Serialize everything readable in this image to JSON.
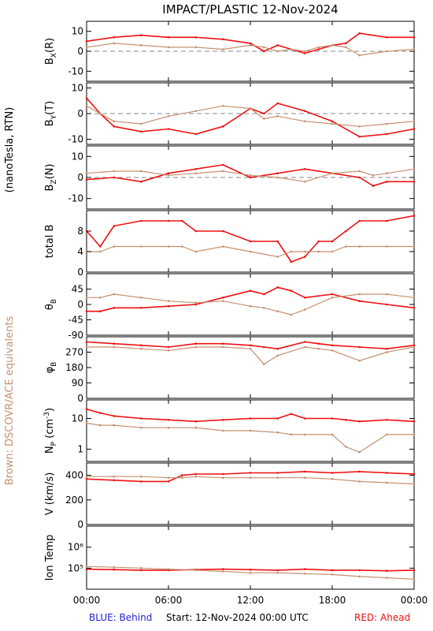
{
  "title": "IMPACT/PLASTIC   12-Nov-2024",
  "left_labels": {
    "units": "(nanoTesla, RTN)",
    "brown_note": "Brown: DSCOVR/ACE equivalents"
  },
  "footer": {
    "blue": "BLUE: Behind",
    "start": "Start: 12-Nov-2024 00:00 UTC",
    "red": "RED: Ahead"
  },
  "colors": {
    "ahead": "#ee1111",
    "ace": "#c49070",
    "blue": "#2222cc",
    "axes": "#000000",
    "zero": "#888888"
  },
  "chart_data": [
    {
      "type": "line",
      "id": "bx",
      "ylabel": "B_X(R)",
      "ylim": [
        -15,
        15
      ],
      "yticks": [
        -10,
        0,
        10
      ],
      "zero_line": true,
      "x": [
        0,
        2,
        4,
        6,
        8,
        10,
        12,
        13,
        14,
        15,
        16,
        17,
        18,
        19,
        20,
        22,
        24
      ],
      "series": [
        {
          "color": "ahead",
          "values": [
            5,
            7,
            8,
            7,
            7,
            6,
            4,
            0,
            3,
            1,
            -1,
            1,
            3,
            4,
            9,
            7,
            7
          ]
        },
        {
          "color": "ace",
          "values": [
            2,
            4,
            3,
            2,
            2,
            1,
            3,
            2,
            0,
            1,
            0,
            2,
            3,
            2,
            -2,
            0,
            1
          ]
        }
      ]
    },
    {
      "type": "line",
      "id": "by",
      "ylabel": "B_Y(T)",
      "ylim": [
        -12,
        12
      ],
      "yticks": [
        -10,
        0,
        10
      ],
      "zero_line": true,
      "x": [
        0,
        1,
        2,
        4,
        6,
        8,
        10,
        12,
        13,
        14,
        16,
        18,
        20,
        22,
        24
      ],
      "series": [
        {
          "color": "ahead",
          "values": [
            6,
            0,
            -5,
            -7,
            -6,
            -8,
            -5,
            2,
            0,
            4,
            1,
            -3,
            -9,
            -8,
            -6
          ]
        },
        {
          "color": "ace",
          "values": [
            3,
            0,
            -3,
            -4,
            -1,
            1,
            3,
            2,
            -2,
            -1,
            -3,
            -4,
            -5,
            -4,
            -3
          ]
        }
      ]
    },
    {
      "type": "line",
      "id": "bz",
      "ylabel": "B_Z(N)",
      "ylim": [
        -15,
        15
      ],
      "yticks": [
        -10,
        0,
        10
      ],
      "zero_line": true,
      "x": [
        0,
        2,
        4,
        6,
        8,
        10,
        12,
        14,
        16,
        18,
        20,
        21,
        22,
        24
      ],
      "series": [
        {
          "color": "ahead",
          "values": [
            -1,
            0,
            -2,
            2,
            4,
            6,
            0,
            2,
            4,
            2,
            0,
            -4,
            -2,
            -2
          ]
        },
        {
          "color": "ace",
          "values": [
            2,
            3,
            3,
            1,
            2,
            3,
            1,
            0,
            -2,
            2,
            3,
            1,
            2,
            4
          ]
        }
      ]
    },
    {
      "type": "line",
      "id": "btot",
      "ylabel": "total B",
      "ylim": [
        0,
        12
      ],
      "yticks": [
        0,
        4,
        8
      ],
      "zero_line": false,
      "x": [
        0,
        1,
        2,
        4,
        6,
        7,
        8,
        10,
        12,
        14,
        15,
        16,
        17,
        18,
        19,
        20,
        22,
        24
      ],
      "series": [
        {
          "color": "ahead",
          "values": [
            8,
            5,
            9,
            10,
            10,
            10,
            8,
            8,
            6,
            6,
            2,
            3,
            6,
            6,
            8,
            10,
            10,
            11
          ]
        },
        {
          "color": "ace",
          "values": [
            4,
            4,
            5,
            5,
            5,
            5,
            4,
            5,
            4,
            3,
            4,
            4,
            4,
            4,
            5,
            5,
            5,
            5
          ]
        }
      ]
    },
    {
      "type": "line",
      "id": "theta",
      "ylabel": "θ_B",
      "ylim": [
        -90,
        90
      ],
      "yticks": [
        -90,
        -45,
        0,
        45
      ],
      "zero_line": false,
      "x": [
        0,
        1,
        2,
        4,
        6,
        8,
        10,
        12,
        13,
        14,
        15,
        16,
        18,
        20,
        22,
        24
      ],
      "series": [
        {
          "color": "ahead",
          "values": [
            -20,
            -20,
            -10,
            -10,
            -5,
            0,
            20,
            40,
            30,
            50,
            40,
            20,
            30,
            10,
            0,
            -10
          ]
        },
        {
          "color": "ace",
          "values": [
            20,
            20,
            30,
            20,
            10,
            5,
            10,
            -5,
            -10,
            -20,
            -30,
            -15,
            20,
            30,
            30,
            20
          ]
        }
      ]
    },
    {
      "type": "line",
      "id": "phi",
      "ylabel": "φ_B",
      "ylim": [
        0,
        360
      ],
      "yticks": [
        0,
        90,
        180,
        270
      ],
      "zero_line": false,
      "x": [
        0,
        2,
        4,
        6,
        8,
        10,
        12,
        13,
        14,
        16,
        17,
        18,
        20,
        22,
        24
      ],
      "series": [
        {
          "color": "ahead",
          "values": [
            330,
            320,
            310,
            300,
            320,
            320,
            310,
            300,
            290,
            330,
            320,
            310,
            300,
            290,
            310
          ]
        },
        {
          "color": "ace",
          "values": [
            300,
            300,
            290,
            280,
            300,
            300,
            290,
            200,
            250,
            300,
            290,
            280,
            220,
            270,
            300
          ]
        }
      ]
    },
    {
      "type": "line",
      "id": "np",
      "ylabel": "N_P (cm^-3)",
      "yscale": "log",
      "ylim": [
        0.4,
        40
      ],
      "yticks": [
        1,
        10
      ],
      "zero_line": false,
      "x": [
        0,
        1,
        2,
        4,
        6,
        8,
        10,
        12,
        14,
        15,
        16,
        18,
        19,
        20,
        22,
        24
      ],
      "series": [
        {
          "color": "ahead",
          "values": [
            20,
            15,
            12,
            10,
            9,
            8,
            9,
            10,
            10,
            14,
            10,
            10,
            9,
            8,
            9,
            8
          ]
        },
        {
          "color": "ace",
          "values": [
            7,
            6,
            6,
            5,
            5,
            5,
            4,
            4,
            3.5,
            3,
            3,
            3,
            1.2,
            0.8,
            3,
            3
          ]
        }
      ]
    },
    {
      "type": "line",
      "id": "v",
      "ylabel": "V (km/s)",
      "ylim": [
        0,
        500
      ],
      "yticks": [
        0,
        200,
        400
      ],
      "zero_line": false,
      "x": [
        0,
        2,
        4,
        6,
        7,
        8,
        10,
        12,
        14,
        16,
        18,
        20,
        22,
        24
      ],
      "series": [
        {
          "color": "ahead",
          "values": [
            370,
            360,
            350,
            350,
            400,
            410,
            410,
            420,
            420,
            430,
            420,
            430,
            420,
            410
          ]
        },
        {
          "color": "ace",
          "values": [
            390,
            390,
            390,
            380,
            380,
            390,
            380,
            380,
            380,
            380,
            370,
            350,
            340,
            330
          ]
        }
      ]
    },
    {
      "type": "line",
      "id": "temp",
      "ylabel": "Ion Temp",
      "yscale": "log",
      "ylim": [
        10000,
        10000000
      ],
      "yticks": [
        100000,
        1000000
      ],
      "ytick_labels": [
        "10⁵",
        "10⁶"
      ],
      "zero_line": false,
      "x": [
        0,
        2,
        4,
        6,
        8,
        10,
        12,
        14,
        16,
        18,
        20,
        22,
        24
      ],
      "series": [
        {
          "color": "ahead",
          "values": [
            90000,
            85000,
            80000,
            80000,
            85000,
            90000,
            85000,
            80000,
            90000,
            80000,
            80000,
            75000,
            80000
          ]
        },
        {
          "color": "ace",
          "values": [
            120000,
            110000,
            100000,
            90000,
            80000,
            70000,
            60000,
            60000,
            55000,
            50000,
            40000,
            35000,
            30000
          ]
        }
      ]
    }
  ],
  "xaxis": {
    "min": 0,
    "max": 24,
    "ticks": [
      0,
      6,
      12,
      18,
      24
    ],
    "tick_labels": [
      "00:00",
      "06:00",
      "12:00",
      "18:00",
      "00:00"
    ]
  }
}
